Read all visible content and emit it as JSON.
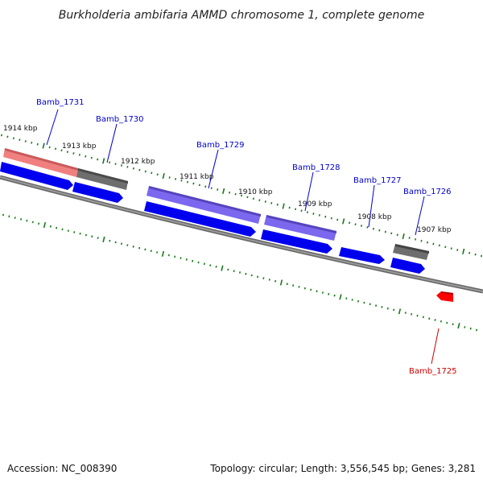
{
  "title": "Burkholderia ambifaria AMMD chromosome 1, complete genome",
  "footer": {
    "accession": "Accession: NC_008390",
    "summary": "Topology: circular; Length: 3,556,545 bp; Genes: 3,281"
  },
  "kbp_labels": [
    "1914 kbp",
    "1913 kbp",
    "1912 kbp",
    "1911 kbp",
    "1910 kbp",
    "1909 kbp",
    "1908 kbp",
    "1907 kbp"
  ],
  "gene_labels": [
    {
      "text": "Bamb_1731",
      "color": "#0000cc"
    },
    {
      "text": "Bamb_1730",
      "color": "#0000cc"
    },
    {
      "text": "Bamb_1729",
      "color": "#0000cc"
    },
    {
      "text": "Bamb_1728",
      "color": "#0000cc"
    },
    {
      "text": "Bamb_1727",
      "color": "#0000cc"
    },
    {
      "text": "Bamb_1726",
      "color": "#0000cc"
    },
    {
      "text": "Bamb_1725",
      "color": "#cc0000"
    }
  ],
  "colors": {
    "backbone": "#808080",
    "tick": "#1a7a1a",
    "cds_blue": "#0000ee",
    "gene_pink": "#f08080",
    "gene_gray": "#6e6e6e",
    "gene_purple": "#7b68ee",
    "gene_red": "#ff0000"
  }
}
